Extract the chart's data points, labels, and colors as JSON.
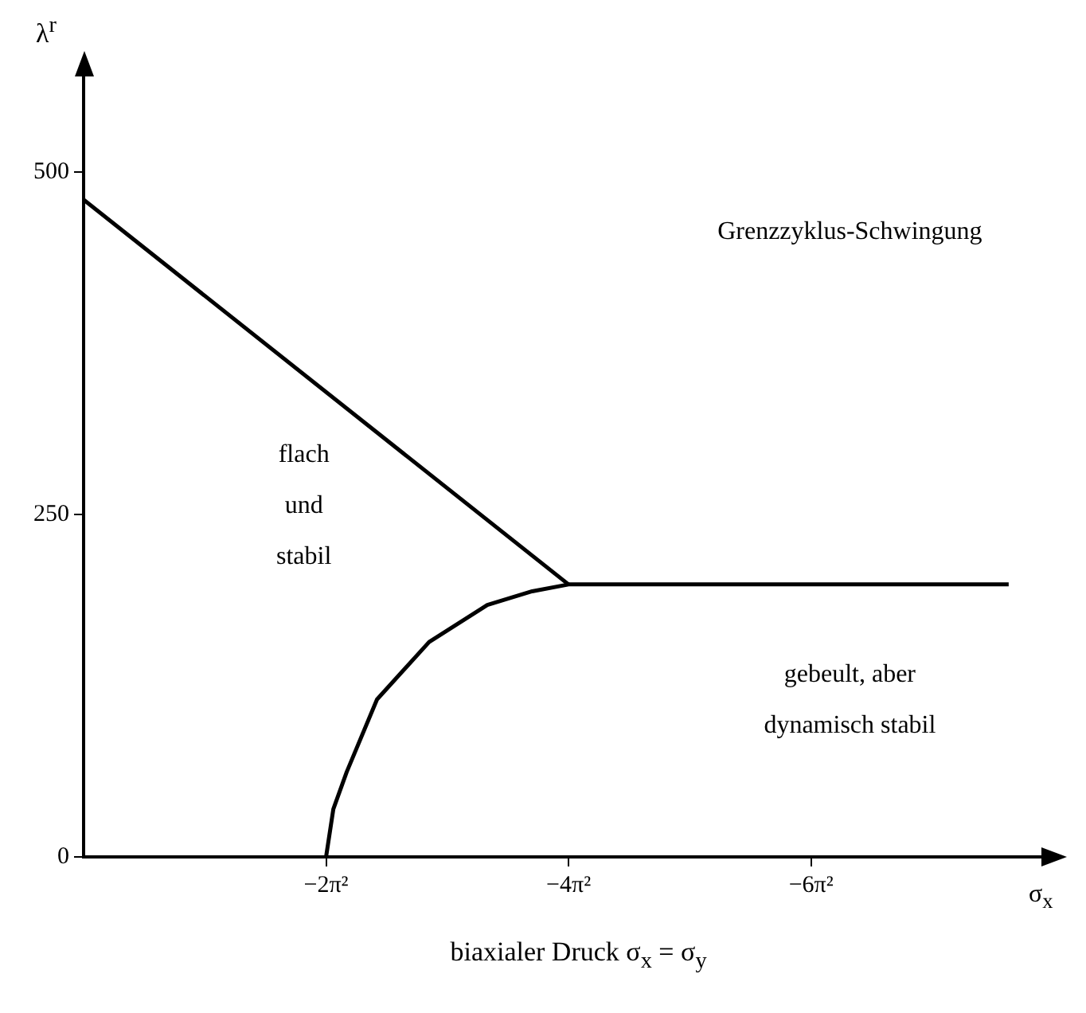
{
  "chart_data": {
    "type": "line",
    "xlabel": "biaxialer Druck σ$_{x}$ = σ$_{y}$",
    "ylabel": "λ$^{r}$",
    "xlim": [
      0,
      -7.9
    ],
    "ylim": [
      0,
      570
    ],
    "xticks": [
      {
        "value": -2,
        "label": "−2π²"
      },
      {
        "value": -4,
        "label": "−4π²"
      },
      {
        "value": -6,
        "label": "−6π²"
      }
    ],
    "yticks": [
      0,
      250,
      500
    ],
    "series": [
      {
        "color": "#000000",
        "x": [
          0,
          -4
        ],
        "values": [
          480,
          199
        ]
      },
      {
        "color": "#000000",
        "x": [
          -2,
          -2.06,
          -2.17,
          -2.42,
          -2.85,
          -3.33,
          -3.7,
          -4,
          -7.63
        ],
        "values": [
          0,
          35,
          62,
          115,
          157,
          184,
          194,
          199,
          199
        ]
      }
    ],
    "annotations": [
      "σ$_{x}$",
      "Grenzzyklus-Schwingung",
      "flach\nund\nstabil",
      "gebeult, aber\ndynamisch stabil"
    ],
    "marker": "none",
    "line_style": "solid",
    "legend": false
  }
}
